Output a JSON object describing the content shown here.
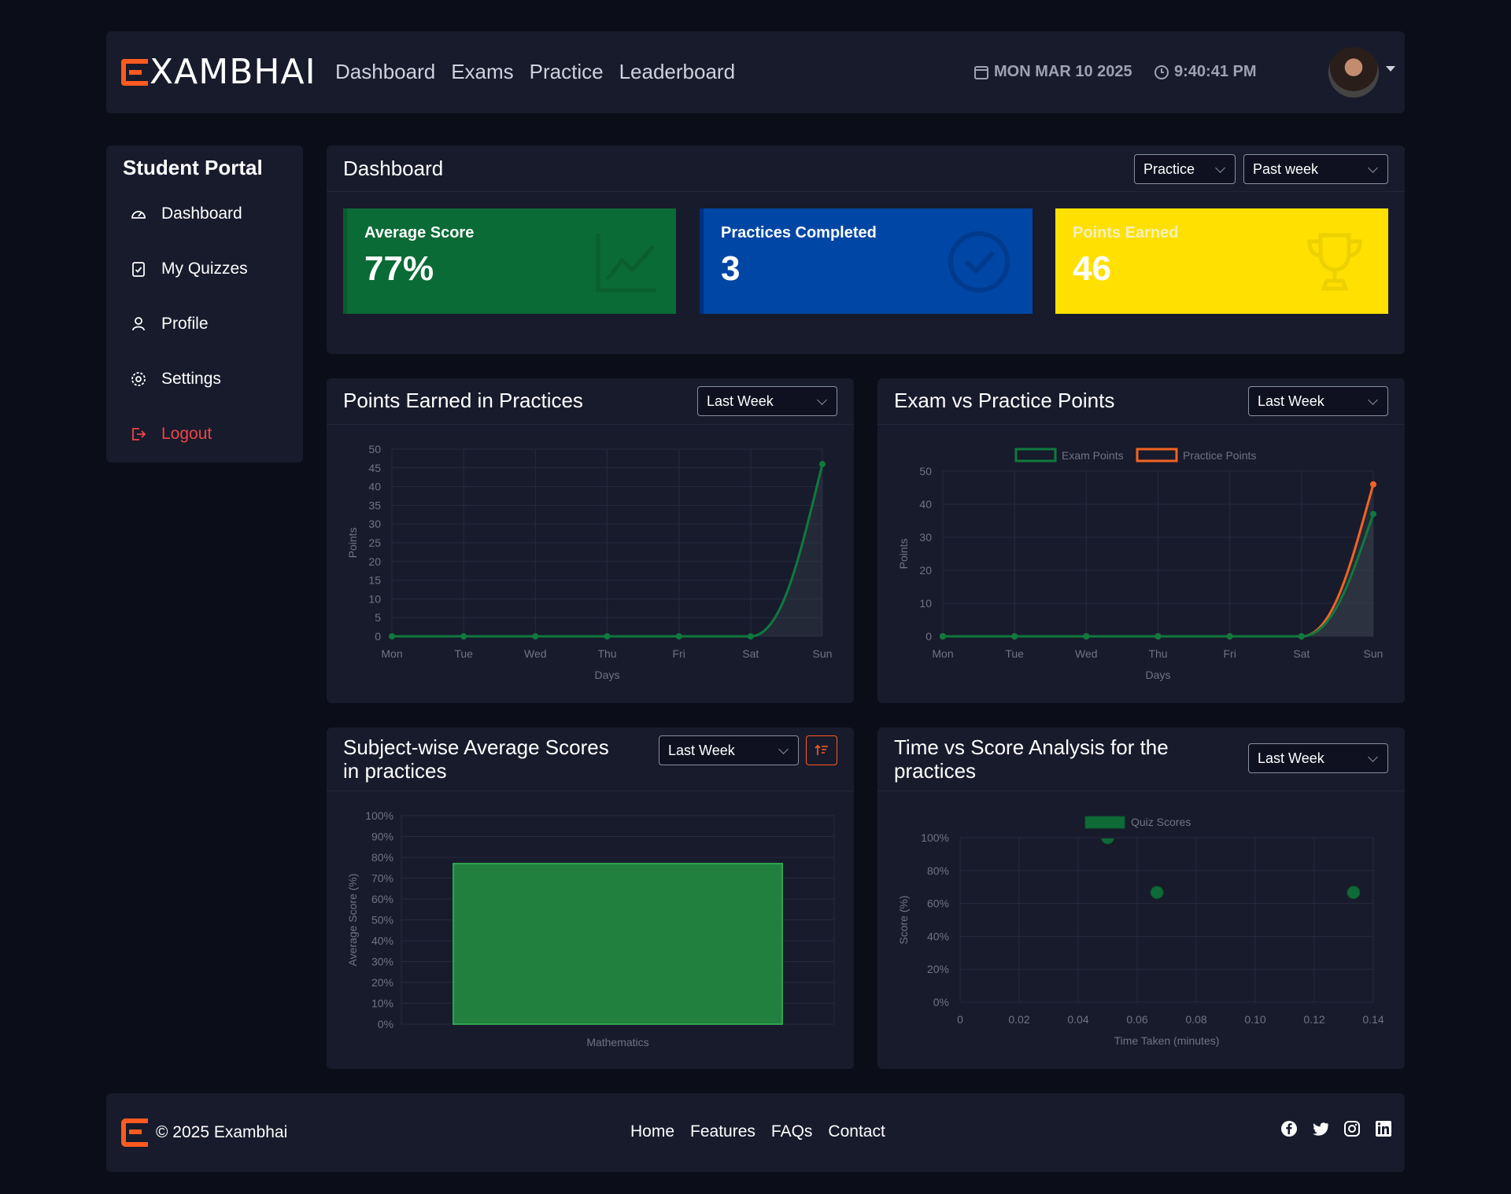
{
  "header": {
    "logo_text": "XAMBHAI",
    "nav": [
      "Dashboard",
      "Exams",
      "Practice",
      "Leaderboard"
    ],
    "date": "MON MAR 10 2025",
    "time": "9:40:41 PM"
  },
  "sidebar": {
    "title": "Student Portal",
    "items": [
      {
        "label": "Dashboard",
        "icon": "gauge-icon"
      },
      {
        "label": "My Quizzes",
        "icon": "clipboard-check-icon"
      },
      {
        "label": "Profile",
        "icon": "user-icon"
      },
      {
        "label": "Settings",
        "icon": "gear-icon"
      },
      {
        "label": "Logout",
        "icon": "logout-icon"
      }
    ]
  },
  "dashboard": {
    "title": "Dashboard",
    "type_select": "Practice",
    "range_select": "Past week",
    "cards": [
      {
        "label": "Average Score",
        "value": "77%",
        "color": "#0a6b36",
        "icon": "chart-line-icon"
      },
      {
        "label": "Practices Completed",
        "value": "3",
        "color": "#0046a4",
        "icon": "check-circle-icon"
      },
      {
        "label": "Points Earned",
        "value": "46",
        "color": "#ffe000",
        "icon": "trophy-icon"
      }
    ]
  },
  "points_chart": {
    "title": "Points Earned in Practices",
    "select": "Last Week"
  },
  "exam_chart": {
    "title": "Exam vs Practice Points",
    "select": "Last Week"
  },
  "subject_chart": {
    "title_line1": "Subject-wise Average Scores",
    "title_line2": "in practices",
    "select": "Last Week"
  },
  "time_chart": {
    "title_line1": "Time vs Score Analysis for the",
    "title_line2": "practices",
    "select": "Last Week"
  },
  "chart_data": [
    {
      "type": "area",
      "categories": [
        "Mon",
        "Tue",
        "Wed",
        "Thu",
        "Fri",
        "Sat",
        "Sun"
      ],
      "series": [
        {
          "values": [
            0,
            0,
            0,
            0,
            0,
            0,
            46
          ],
          "color": "#0e7a3e"
        }
      ],
      "xlabel": "Days",
      "ylabel": "Points",
      "yticks": [
        "0",
        "5",
        "10",
        "15",
        "20",
        "25",
        "30",
        "35",
        "40",
        "45",
        "50"
      ],
      "ylim": [
        0,
        50
      ]
    },
    {
      "type": "line",
      "categories": [
        "Mon",
        "Tue",
        "Wed",
        "Thu",
        "Fri",
        "Sat",
        "Sun"
      ],
      "series": [
        {
          "name": "Exam Points",
          "values": [
            0,
            0,
            0,
            0,
            0,
            0,
            37
          ],
          "color": "#0e7a3e"
        },
        {
          "name": "Practice Points",
          "values": [
            0,
            0,
            0,
            0,
            0,
            0,
            46
          ],
          "color": "#f26322"
        }
      ],
      "xlabel": "Days",
      "ylabel": "Points",
      "yticks": [
        "0",
        "10",
        "20",
        "30",
        "40",
        "50"
      ],
      "ylim": [
        0,
        50
      ],
      "legend": "top"
    },
    {
      "type": "bar",
      "categories": [
        "Mathematics"
      ],
      "values": [
        77
      ],
      "color": "#22803f",
      "ylabel": "Average Score (%)",
      "yticks": [
        "0%",
        "10%",
        "20%",
        "30%",
        "40%",
        "50%",
        "60%",
        "70%",
        "80%",
        "90%",
        "100%"
      ],
      "ylim": [
        0,
        100
      ]
    },
    {
      "type": "scatter",
      "series": [
        {
          "name": "Quiz Scores",
          "points": [
            [
              0.05,
              100
            ],
            [
              0.0667,
              66.7
            ],
            [
              0.1333,
              66.7
            ]
          ],
          "color": "#0e6b38"
        }
      ],
      "xlabel": "Time Taken (minutes)",
      "ylabel": "Score (%)",
      "xticks": [
        "0",
        "0.02",
        "0.04",
        "0.06",
        "0.08",
        "0.10",
        "0.12",
        "0.14"
      ],
      "yticks": [
        "0%",
        "20%",
        "40%",
        "60%",
        "80%",
        "100%"
      ],
      "xlim": [
        0,
        0.14
      ],
      "ylim": [
        0,
        100
      ],
      "legend": "top"
    }
  ],
  "footer": {
    "copyright": "© 2025 Exambhai",
    "links": [
      "Home",
      "Features",
      "FAQs",
      "Contact"
    ],
    "socials": [
      "facebook-icon",
      "twitter-icon",
      "instagram-icon",
      "linkedin-icon"
    ]
  }
}
